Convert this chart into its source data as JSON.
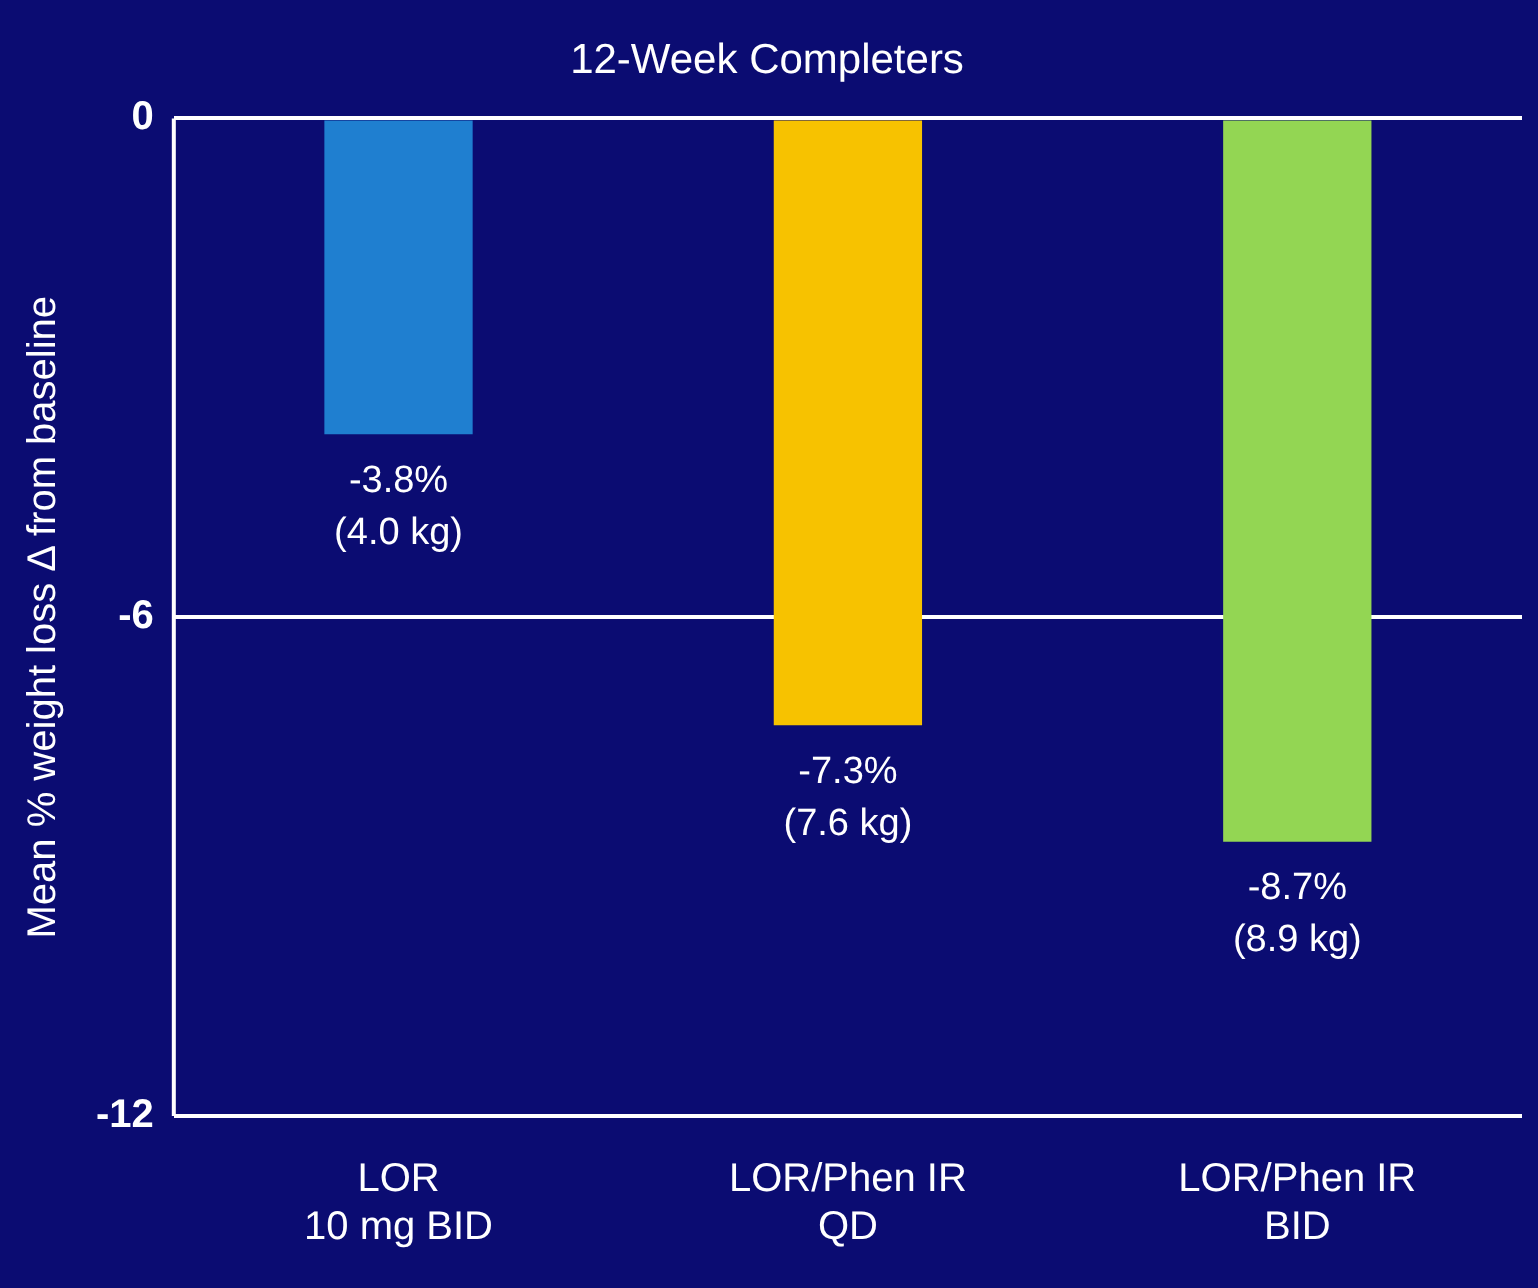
{
  "chart_data": {
    "type": "bar",
    "title": "12-Week Completers",
    "ylabel": "Mean % weight loss Δ from baseline",
    "categories": [
      "LOR\n10 mg BID",
      "LOR/Phen IR\nQD",
      "LOR/Phen IR\nBID"
    ],
    "values": [
      -3.8,
      -7.3,
      -8.7
    ],
    "colors": [
      "#1f7fd0",
      "#f7c200",
      "#93d653"
    ],
    "value_labels": [
      "-3.8%\n(4.0 kg)",
      "-7.3%\n(7.6 kg)",
      "-8.7%\n(8.9 kg)"
    ],
    "ylim": [
      -12,
      0
    ],
    "yticks": [
      0,
      -6,
      -12
    ],
    "grid": "y",
    "legend": false
  }
}
